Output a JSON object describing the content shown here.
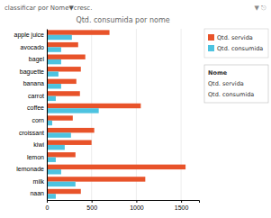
{
  "chart_data": {
    "type": "bar",
    "orientation": "horizontal",
    "title": "Qtd. consumida por nome",
    "categories": [
      "apple juice",
      "avocado",
      "bagel",
      "baguette",
      "banana",
      "carrot",
      "coffee",
      "corn",
      "croissant",
      "kiwi",
      "lemon",
      "lemonade",
      "milk",
      "naan"
    ],
    "series": [
      {
        "name": "Qtd. servida",
        "color": "#e8532a",
        "values": [
          700,
          350,
          430,
          380,
          330,
          370,
          1050,
          290,
          530,
          500,
          320,
          1550,
          1100,
          380
        ]
      },
      {
        "name": "Qtd. consumida",
        "color": "#4dc3e0",
        "values": [
          280,
          160,
          160,
          130,
          160,
          100,
          580,
          60,
          270,
          200,
          100,
          160,
          320,
          100
        ]
      }
    ],
    "xlim": [
      0,
      1700
    ],
    "xticks": [
      0,
      500,
      1000,
      1500
    ],
    "grid": true,
    "legend": "right",
    "annotations": [
      "classificar por Nome▼cresc.",
      "Nome",
      "Qtd. servida",
      "Qtd. consumida",
      "▼ ⎋"
    ]
  }
}
